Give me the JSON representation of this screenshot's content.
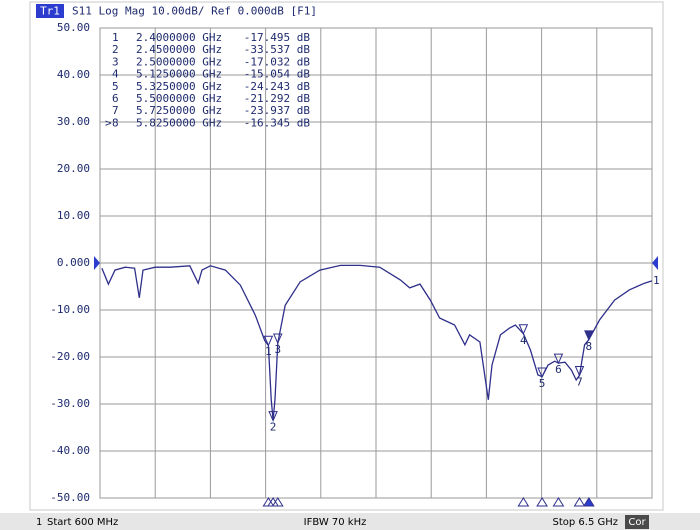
{
  "chart_data": {
    "type": "line",
    "header": {
      "trace": "Tr1",
      "title": "S11 Log Mag 10.00dB/ Ref 0.000dB [F1]"
    },
    "footer": {
      "channel": "1",
      "start": "Start 600 MHz",
      "ifbw": "IFBW 70 kHz",
      "stop": "Stop 6.5 GHz",
      "cor": "Cor"
    },
    "xlim": [
      0.6,
      6.5
    ],
    "xticks": [
      0.6,
      1.19,
      1.78,
      2.37,
      2.96,
      3.55,
      4.14,
      4.73,
      5.32,
      5.91,
      6.5
    ],
    "ylim": [
      -50,
      50
    ],
    "yticks": [
      {
        "value": 50,
        "label": "50.00"
      },
      {
        "value": 40,
        "label": "40.00"
      },
      {
        "value": 30,
        "label": "30.00"
      },
      {
        "value": 20,
        "label": "20.00"
      },
      {
        "value": 10,
        "label": "10.00"
      },
      {
        "value": 0,
        "label": "0.000"
      },
      {
        "value": -10,
        "label": "-10.00"
      },
      {
        "value": -20,
        "label": "-20.00"
      },
      {
        "value": -30,
        "label": "-30.00"
      },
      {
        "value": -40,
        "label": "-40.00"
      },
      {
        "value": -50,
        "label": "-50.00"
      }
    ],
    "grid": true,
    "ref_level": 0,
    "trace_number": "1",
    "color": "#2f2f8c",
    "x": [
      0.62,
      0.69,
      0.76,
      0.87,
      0.97,
      1.02,
      1.06,
      1.19,
      1.35,
      1.56,
      1.65,
      1.69,
      1.78,
      1.94,
      2.1,
      2.26,
      2.36,
      2.4,
      2.43,
      2.45,
      2.47,
      2.5,
      2.58,
      2.74,
      2.95,
      3.17,
      3.38,
      3.59,
      3.81,
      3.91,
      4.02,
      4.13,
      4.23,
      4.39,
      4.5,
      4.55,
      4.66,
      4.75,
      4.79,
      4.88,
      4.98,
      5.04,
      5.125,
      5.2,
      5.28,
      5.325,
      5.39,
      5.46,
      5.5,
      5.57,
      5.64,
      5.69,
      5.725,
      5.78,
      5.825,
      5.94,
      6.1,
      6.26,
      6.42,
      6.5
    ],
    "values": [
      -1.1,
      -4.5,
      -1.5,
      -0.9,
      -1.1,
      -7.4,
      -1.5,
      -0.9,
      -0.9,
      -0.6,
      -4.3,
      -1.5,
      -0.6,
      -1.5,
      -4.7,
      -11.1,
      -16.5,
      -17.5,
      -29,
      -33.5,
      -29,
      -17.0,
      -9,
      -4,
      -1.5,
      -0.5,
      -0.5,
      -0.9,
      -3.6,
      -5.3,
      -4.5,
      -7.9,
      -11.7,
      -13.2,
      -17.4,
      -15.3,
      -16.8,
      -29.1,
      -21.7,
      -15.3,
      -13.8,
      -13.2,
      -15.05,
      -18.5,
      -23.8,
      -24.2,
      -21.7,
      -20.9,
      -21.3,
      -21.1,
      -22.8,
      -24.9,
      -23.9,
      -17.4,
      -16.3,
      -12.1,
      -7.9,
      -5.7,
      -4.3,
      -3.8
    ],
    "markers": [
      {
        "name": "1",
        "x": 2.4,
        "y": -17.495,
        "x_label": "2.4000000 GHz",
        "y_label": "-17.495 dB"
      },
      {
        "name": "2",
        "x": 2.45,
        "y": -33.537,
        "x_label": "2.4500000 GHz",
        "y_label": "-33.537 dB"
      },
      {
        "name": "3",
        "x": 2.5,
        "y": -17.032,
        "x_label": "2.5000000 GHz",
        "y_label": "-17.032 dB"
      },
      {
        "name": "4",
        "x": 5.125,
        "y": -15.054,
        "x_label": "5.1250000 GHz",
        "y_label": "-15.054 dB"
      },
      {
        "name": "5",
        "x": 5.325,
        "y": -24.243,
        "x_label": "5.3250000 GHz",
        "y_label": "-24.243 dB"
      },
      {
        "name": "6",
        "x": 5.5,
        "y": -21.292,
        "x_label": "5.5000000 GHz",
        "y_label": "-21.292 dB"
      },
      {
        "name": "7",
        "x": 5.725,
        "y": -23.937,
        "x_label": "5.7250000 GHz",
        "y_label": "-23.937 dB"
      },
      {
        "name": "8",
        "x": 5.825,
        "y": -16.345,
        "x_label": "5.8250000 GHz",
        "y_label": "-16.345 dB"
      }
    ],
    "active_marker": {
      "index": 7,
      "symbol": ">"
    }
  }
}
